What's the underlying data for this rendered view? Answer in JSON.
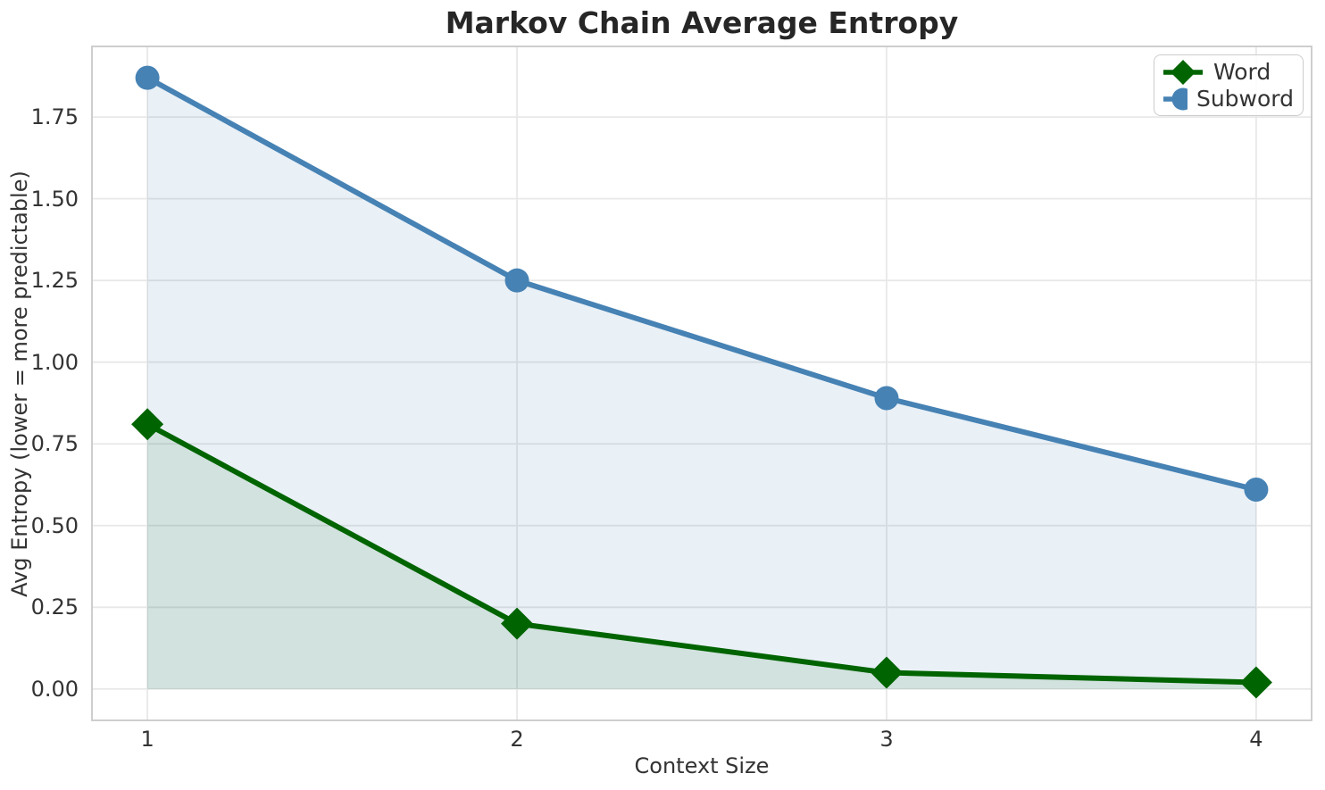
{
  "chart_data": {
    "type": "line",
    "title": "Markov Chain Average Entropy",
    "xlabel": "Context Size",
    "ylabel": "Avg Entropy (lower = more predictable)",
    "x": [
      1,
      2,
      3,
      4
    ],
    "xtick_labels": [
      "1",
      "2",
      "3",
      "4"
    ],
    "ytick_values": [
      0,
      0.25,
      0.5,
      0.75,
      1.0,
      1.25,
      1.5,
      1.75
    ],
    "ytick_labels": [
      "0.00",
      "0.25",
      "0.50",
      "0.75",
      "1.00",
      "1.25",
      "1.50",
      "1.75"
    ],
    "xlim": [
      0.85,
      4.15
    ],
    "ylim": [
      -0.096,
      1.966
    ],
    "grid": true,
    "legend_position": "upper right",
    "fill_baseline": 0,
    "series": [
      {
        "name": "Word",
        "color": "#006400",
        "marker": "diamond",
        "fill_opacity": 0.1,
        "values": [
          0.81,
          0.2,
          0.05,
          0.02
        ]
      },
      {
        "name": "Subword",
        "color": "#4682b4",
        "marker": "circle",
        "fill_opacity": 0.12,
        "values": [
          1.87,
          1.25,
          0.89,
          0.61
        ]
      }
    ],
    "colors": {
      "grid": "#e8e8e8",
      "spine": "#c9c9c9",
      "text": "#333333",
      "title": "#262626"
    }
  }
}
